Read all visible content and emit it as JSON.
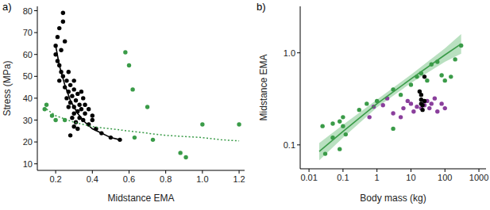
{
  "chart_data": [
    {
      "type": "scatter",
      "title": "a)",
      "x_label": "Midstance EMA",
      "y_label": "Stress (MPa)",
      "xlim": [
        0.1,
        1.23
      ],
      "ylim": [
        7,
        82
      ],
      "xticks": [
        0.2,
        0.4,
        0.6,
        0.8,
        {
          "value": 1,
          "label": "1.0"
        },
        1.2
      ],
      "yticks": [
        10,
        20,
        30,
        40,
        50,
        60,
        70,
        80
      ],
      "series": [
        {
          "type": "scatter",
          "marker": "circle",
          "color": "#000000",
          "x": [
            0.22,
            0.24,
            0.24,
            0.21,
            0.2,
            0.2,
            0.21,
            0.22,
            0.23,
            0.25,
            0.24,
            0.26,
            0.27,
            0.25,
            0.27,
            0.28,
            0.29,
            0.3,
            0.3,
            0.31,
            0.32,
            0.33,
            0.28,
            0.3,
            0.32,
            0.34,
            0.35,
            0.36,
            0.33,
            0.31,
            0.29,
            0.3,
            0.32,
            0.28,
            0.35,
            0.38,
            0.4,
            0.42,
            0.38,
            0.4,
            0.45,
            0.5,
            0.55,
            0.34,
            0.36,
            0.3,
            0.26,
            0.27,
            0.23,
            0.22
          ],
          "values": [
            72,
            79,
            75,
            68,
            64,
            60,
            57,
            55,
            62,
            66,
            50,
            48,
            52,
            45,
            43,
            46,
            41,
            44,
            48,
            39,
            42,
            37,
            38,
            36,
            34,
            35,
            40,
            33,
            31,
            29,
            31,
            27,
            26,
            23,
            30,
            28,
            30,
            26,
            35,
            32,
            24,
            22,
            21,
            43,
            37,
            33,
            40,
            36,
            52,
            48
          ]
        },
        {
          "type": "scatter",
          "marker": "circle",
          "color": "#3a9b48",
          "x": [
            0.15,
            0.14,
            0.18,
            0.2,
            0.25,
            0.58,
            0.6,
            0.62,
            0.7,
            0.63,
            0.73,
            0.88,
            0.91,
            1.0,
            1.2
          ],
          "values": [
            37,
            35,
            32,
            30,
            30,
            61,
            55,
            44,
            36,
            22,
            21,
            15,
            13,
            28,
            28
          ]
        },
        {
          "type": "line",
          "line_style": "solid",
          "color": "#000000",
          "x": [
            0.2,
            0.22,
            0.25,
            0.28,
            0.32,
            0.36,
            0.4,
            0.45,
            0.5,
            0.55
          ],
          "values": [
            64,
            55,
            46,
            39,
            33,
            29,
            26,
            24,
            22,
            21
          ]
        },
        {
          "type": "line",
          "line_style": "dotted",
          "color": "#3a9b48",
          "x": [
            0.15,
            0.2,
            0.3,
            0.4,
            0.5,
            0.6,
            0.7,
            0.8,
            0.9,
            1.0,
            1.1,
            1.2
          ],
          "values": [
            35,
            32,
            29,
            27,
            26,
            25,
            24,
            23,
            22.5,
            22,
            21,
            20.5
          ]
        }
      ]
    },
    {
      "type": "scatter",
      "title": "b)",
      "x_label": "Body mass (kg)",
      "y_label": "Midstance EMA",
      "log": true,
      "xlim": [
        0.0055,
        1620
      ],
      "ylim": [
        0.055,
        3.2
      ],
      "xticks": [
        0.01,
        0.1,
        1,
        10,
        100,
        1000
      ],
      "yticks": [
        0.1,
        {
          "value": 1,
          "label": "1.0"
        }
      ],
      "series": [
        {
          "type": "area",
          "color": "#a8d8b0",
          "x": [
            0.02,
            0.1,
            1,
            10,
            100,
            300
          ],
          "upper": [
            0.105,
            0.165,
            0.31,
            0.58,
            1.12,
            1.6
          ],
          "lower": [
            0.068,
            0.12,
            0.255,
            0.47,
            0.8,
            0.98
          ]
        },
        {
          "type": "scatter",
          "marker": "circle",
          "color": "#3a9b48",
          "x": [
            0.025,
            0.05,
            0.08,
            0.1,
            0.12,
            0.05,
            0.08,
            0.03,
            0.3,
            0.5,
            1,
            3,
            3,
            5,
            10,
            15,
            20,
            30,
            40,
            60,
            80,
            100,
            150,
            300,
            200,
            0.1
          ],
          "values": [
            0.16,
            0.17,
            0.18,
            0.16,
            0.13,
            0.12,
            0.09,
            0.08,
            0.24,
            0.28,
            0.3,
            0.4,
            0.15,
            0.35,
            0.45,
            0.55,
            0.6,
            0.5,
            0.75,
            0.8,
            0.57,
            0.5,
            0.55,
            1.2,
            0.85,
            0.2
          ]
        },
        {
          "type": "scatter",
          "marker": "circle",
          "color": "#8a3f9c",
          "x": [
            0.6,
            1.5,
            3,
            5,
            6,
            8,
            10,
            12,
            15,
            20,
            25,
            30,
            35,
            40,
            50,
            60,
            80,
            100,
            2,
            0.8
          ],
          "values": [
            0.2,
            0.27,
            0.22,
            0.2,
            0.25,
            0.3,
            0.28,
            0.23,
            0.26,
            0.25,
            0.27,
            0.3,
            0.25,
            0.28,
            0.32,
            0.23,
            0.28,
            0.25,
            0.32,
            0.26
          ]
        },
        {
          "type": "scatter",
          "marker": "circle",
          "color": "#000000",
          "x": [
            18,
            20,
            20,
            22,
            25,
            22,
            20,
            25
          ],
          "values": [
            0.38,
            0.35,
            0.28,
            0.27,
            0.3,
            0.24,
            0.31,
            0.55
          ]
        },
        {
          "type": "line",
          "line_style": "solid",
          "color": "#3a9b48",
          "x": [
            0.02,
            0.1,
            1,
            10,
            100,
            300
          ],
          "values": [
            0.085,
            0.14,
            0.28,
            0.52,
            0.95,
            1.25
          ]
        }
      ]
    }
  ]
}
